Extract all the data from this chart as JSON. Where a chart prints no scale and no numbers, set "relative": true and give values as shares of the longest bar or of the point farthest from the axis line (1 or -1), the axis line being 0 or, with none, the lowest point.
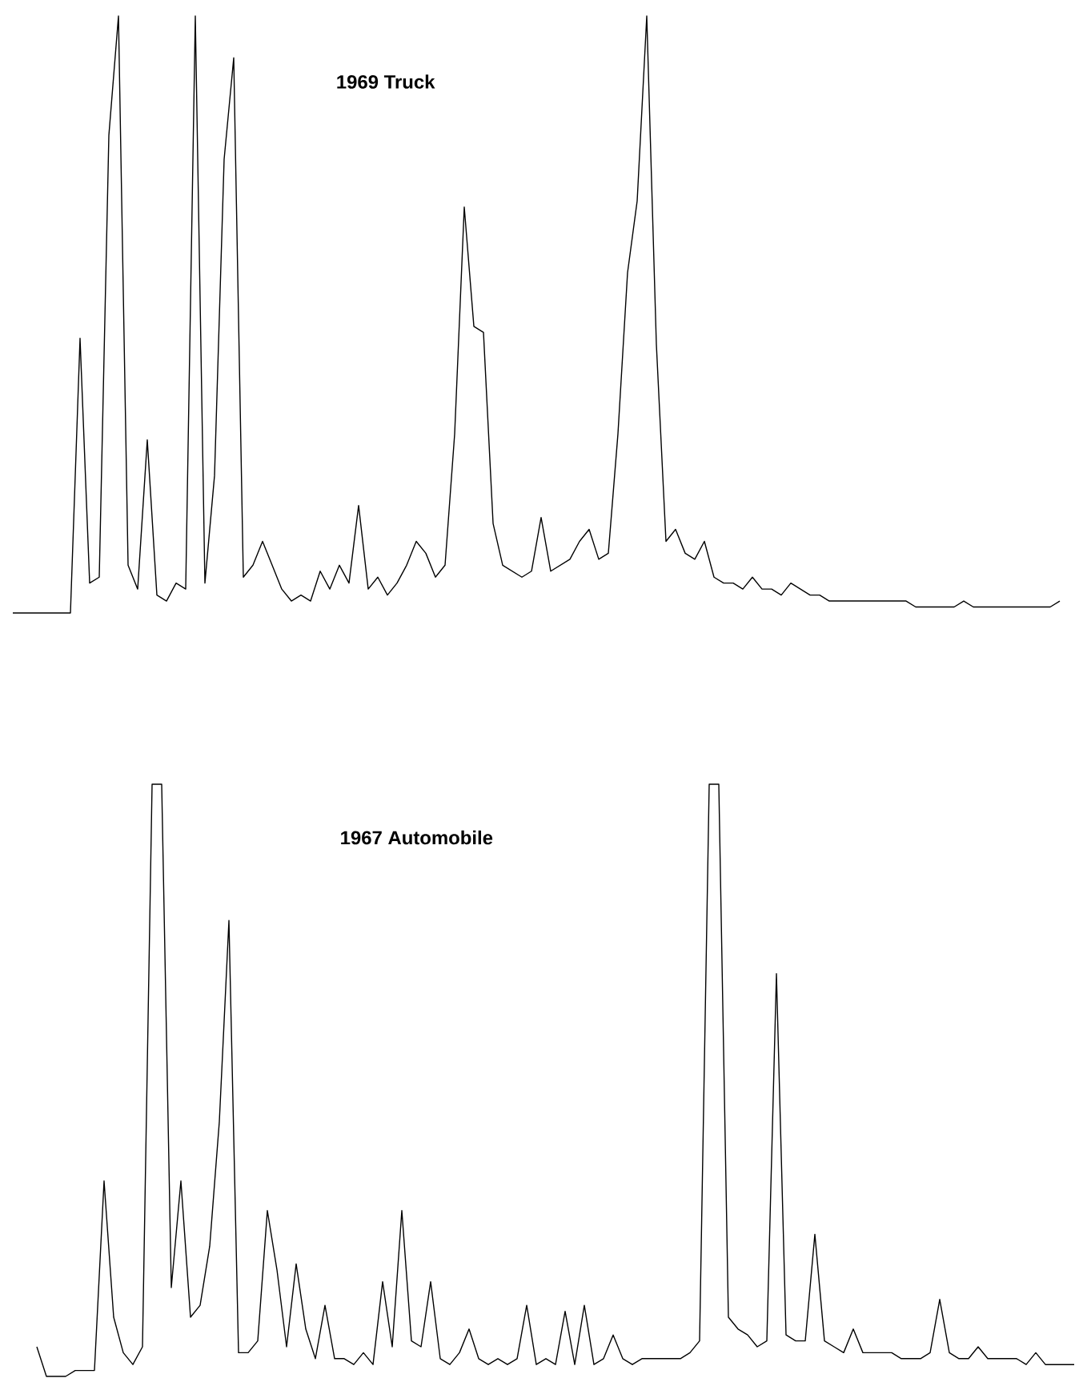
{
  "chart_data": [
    {
      "type": "line",
      "title": "1969 Truck",
      "relative": true,
      "color": "#000000",
      "categories": [
        null,
        null,
        null,
        null,
        null,
        null,
        null,
        null,
        null,
        null,
        null,
        null,
        null,
        null,
        null,
        null,
        null,
        null,
        null,
        null,
        null,
        null,
        null,
        null,
        null,
        null,
        null,
        null,
        null,
        null,
        null,
        null,
        null,
        null,
        null,
        null,
        null,
        null,
        null,
        null,
        null,
        null,
        null,
        null,
        null,
        null,
        null,
        null,
        null,
        null,
        null,
        null,
        null,
        null,
        null,
        null,
        null,
        null,
        null,
        null,
        null,
        null,
        null,
        null,
        null,
        null,
        null,
        null,
        null,
        null,
        null,
        null,
        null,
        null,
        null,
        null,
        null,
        null,
        null,
        null,
        null,
        null,
        null,
        null,
        null,
        null,
        null,
        null,
        null,
        null,
        null,
        null,
        null,
        null,
        null,
        null,
        null,
        null,
        null,
        null,
        null,
        null,
        null,
        null,
        null,
        null,
        null,
        null,
        null,
        null
      ],
      "values": [
        0,
        0,
        0,
        0,
        0,
        0,
        0,
        0.46,
        0.05,
        0.06,
        0.8,
        1.0,
        0.08,
        0.04,
        0.29,
        0.03,
        0.02,
        0.05,
        0.04,
        1.0,
        0.05,
        0.23,
        0.76,
        0.93,
        0.06,
        0.08,
        0.12,
        0.08,
        0.04,
        0.02,
        0.03,
        0.02,
        0.07,
        0.04,
        0.08,
        0.05,
        0.18,
        0.04,
        0.06,
        0.03,
        0.05,
        0.08,
        0.12,
        0.1,
        0.06,
        0.08,
        0.3,
        0.68,
        0.48,
        0.47,
        0.15,
        0.08,
        0.07,
        0.06,
        0.07,
        0.16,
        0.07,
        0.08,
        0.09,
        0.12,
        0.14,
        0.09,
        0.1,
        0.3,
        0.57,
        0.69,
        1.0,
        0.45,
        0.12,
        0.14,
        0.1,
        0.09,
        0.12,
        0.06,
        0.05,
        0.05,
        0.04,
        0.06,
        0.04,
        0.04,
        0.03,
        0.05,
        0.04,
        0.03,
        0.03,
        0.02,
        0.02,
        0.02,
        0.02,
        0.02,
        0.02,
        0.02,
        0.02,
        0.02,
        0.01,
        0.01,
        0.01,
        0.01,
        0.01,
        0.02,
        0.01,
        0.01,
        0.01,
        0.01,
        0.01,
        0.01,
        0.01,
        0.01,
        0.01,
        0.02
      ]
    },
    {
      "type": "line",
      "title": "1967 Automobile",
      "relative": true,
      "color": "#000000",
      "categories": [
        null,
        null,
        null,
        null,
        null,
        null,
        null,
        null,
        null,
        null,
        null,
        null,
        null,
        null,
        null,
        null,
        null,
        null,
        null,
        null,
        null,
        null,
        null,
        null,
        null,
        null,
        null,
        null,
        null,
        null,
        null,
        null,
        null,
        null,
        null,
        null,
        null,
        null,
        null,
        null,
        null,
        null,
        null,
        null,
        null,
        null,
        null,
        null,
        null,
        null,
        null,
        null,
        null,
        null,
        null,
        null,
        null,
        null,
        null,
        null,
        null,
        null,
        null,
        null,
        null,
        null,
        null,
        null,
        null,
        null,
        null,
        null,
        null,
        null,
        null,
        null,
        null,
        null,
        null,
        null,
        null,
        null,
        null,
        null,
        null,
        null,
        null,
        null,
        null,
        null,
        null,
        null,
        null,
        null,
        null,
        null,
        null,
        null,
        null,
        null,
        null,
        null,
        null,
        null,
        null,
        null,
        null,
        null,
        null
      ],
      "values": [
        0.05,
        0,
        0,
        0,
        0.01,
        0.01,
        0.01,
        0.33,
        0.1,
        0.04,
        0.02,
        0.05,
        1.0,
        1.0,
        0.15,
        0.33,
        0.1,
        0.12,
        0.22,
        0.43,
        0.77,
        0.04,
        0.04,
        0.06,
        0.28,
        0.18,
        0.05,
        0.19,
        0.08,
        0.03,
        0.12,
        0.03,
        0.03,
        0.02,
        0.04,
        0.02,
        0.16,
        0.05,
        0.28,
        0.06,
        0.05,
        0.16,
        0.03,
        0.02,
        0.04,
        0.08,
        0.03,
        0.02,
        0.03,
        0.02,
        0.03,
        0.12,
        0.02,
        0.03,
        0.02,
        0.11,
        0.02,
        0.12,
        0.02,
        0.03,
        0.07,
        0.03,
        0.02,
        0.03,
        0.03,
        0.03,
        0.03,
        0.03,
        0.04,
        0.06,
        1.0,
        1.0,
        0.1,
        0.08,
        0.07,
        0.05,
        0.06,
        0.68,
        0.07,
        0.06,
        0.06,
        0.24,
        0.06,
        0.05,
        0.04,
        0.08,
        0.04,
        0.04,
        0.04,
        0.04,
        0.03,
        0.03,
        0.03,
        0.04,
        0.13,
        0.04,
        0.03,
        0.03,
        0.05,
        0.03,
        0.03,
        0.03,
        0.03,
        0.02,
        0.04,
        0.02,
        0.02,
        0.02,
        0.02
      ]
    }
  ]
}
